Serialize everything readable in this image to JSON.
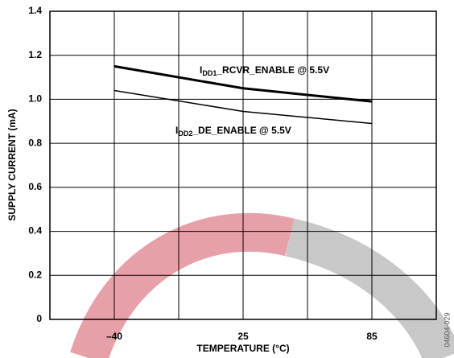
{
  "chart_data": {
    "type": "line",
    "xlabel": "TEMPERATURE (°C)",
    "ylabel": "SUPPLY CURRENT (mA)",
    "categories": [
      "–40",
      "25",
      "85"
    ],
    "series": [
      {
        "label": {
          "main": "I",
          "sub": "DD1",
          "rest": "_RCVR_ENABLE @ 5.5V"
        },
        "color": "#000000",
        "width": 3,
        "values": [
          1.15,
          1.05,
          0.99
        ]
      },
      {
        "label": {
          "main": "I",
          "sub": "DD2",
          "rest": "_DE_ENABLE @ 5.5V"
        },
        "color": "#000000",
        "width": 1.5,
        "values": [
          1.04,
          0.945,
          0.89
        ]
      }
    ],
    "ylim": [
      0,
      1.4
    ],
    "yticks": [
      0,
      0.2,
      0.4,
      0.6,
      0.8,
      {
        "value": 1,
        "label": "1.0"
      },
      1.2,
      1.4
    ],
    "grid": true,
    "figure_id": "04604-029"
  }
}
